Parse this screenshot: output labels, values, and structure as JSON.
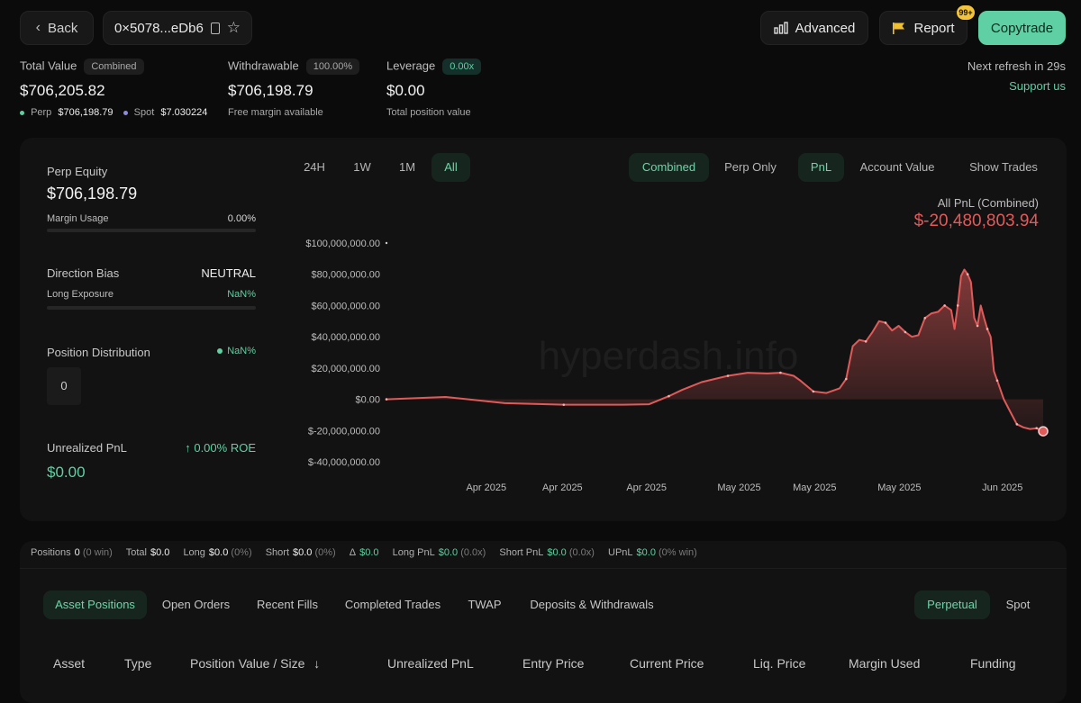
{
  "header": {
    "back_label": "Back",
    "address": "0×5078...eDb6",
    "advanced_label": "Advanced",
    "report_label": "Report",
    "report_badge": "99+",
    "copytrade_label": "Copytrade",
    "refresh_text": "Next refresh in 29s",
    "support_text": "Support us"
  },
  "summary": {
    "total_value_label": "Total Value",
    "total_value_pill": "Combined",
    "total_value": "$706,205.82",
    "perp_label": "Perp",
    "perp_value": "$706,198.79",
    "spot_label": "Spot",
    "spot_value": "$7.030224",
    "withdrawable_label": "Withdrawable",
    "withdrawable_pill": "100.00%",
    "withdrawable_value": "$706,198.79",
    "withdrawable_sub": "Free margin available",
    "leverage_label": "Leverage",
    "leverage_pill": "0.00x",
    "leverage_value": "$0.00",
    "leverage_sub": "Total position value"
  },
  "left_panel": {
    "perp_equity_label": "Perp Equity",
    "perp_equity_value": "$706,198.79",
    "margin_usage_label": "Margin Usage",
    "margin_usage_value": "0.00%",
    "margin_usage_fraction": 0,
    "direction_bias_label": "Direction Bias",
    "direction_bias_value": "NEUTRAL",
    "long_exposure_label": "Long Exposure",
    "long_exposure_value": "NaN%",
    "position_dist_label": "Position Distribution",
    "position_dist_value": "NaN%",
    "position_count": "0",
    "upnl_label": "Unrealized PnL",
    "roe_value": "0.00% ROE",
    "upnl_value": "$0.00"
  },
  "range_tabs": [
    "24H",
    "1W",
    "1M",
    "All"
  ],
  "mode_tabs": [
    "Combined",
    "Perp Only"
  ],
  "metric_tabs": [
    "PnL",
    "Account Value"
  ],
  "show_trades_label": "Show Trades",
  "chart_header": {
    "label": "All PnL (Combined)",
    "value": "$-20,480,803.94"
  },
  "watermark": "hyperdash.info",
  "chart_data": {
    "type": "area",
    "ylim": [
      -40000000,
      100000000
    ],
    "y_ticks": [
      100000000,
      80000000,
      60000000,
      40000000,
      20000000,
      0,
      -20000000,
      -40000000
    ],
    "y_tick_labels": [
      "$100,000,000.00",
      "$80,000,000.00",
      "$60,000,000.00",
      "$40,000,000.00",
      "$20,000,000.00",
      "$0.00",
      "$-20,000,000.00",
      "$-40,000,000.00"
    ],
    "x_tick_labels": [
      "Apr 2025",
      "Apr 2025",
      "Apr 2025",
      "May 2025",
      "May 2025",
      "May 2025",
      "Jun 2025"
    ],
    "x_tick_positions": [
      0.152,
      0.268,
      0.396,
      0.537,
      0.652,
      0.781,
      0.938
    ],
    "x_range": [
      0,
      1
    ],
    "series": [
      {
        "color": "#e05a5a",
        "points": [
          [
            0,
            0
          ],
          [
            0.09,
            1500000
          ],
          [
            0.18,
            -2500000
          ],
          [
            0.27,
            -3500000
          ],
          [
            0.36,
            -3500000
          ],
          [
            0.4,
            -3200000
          ],
          [
            0.43,
            2000000
          ],
          [
            0.45,
            6000000
          ],
          [
            0.48,
            11000000
          ],
          [
            0.52,
            15000000
          ],
          [
            0.55,
            17000000
          ],
          [
            0.58,
            16500000
          ],
          [
            0.6,
            17000000
          ],
          [
            0.62,
            15000000
          ],
          [
            0.63,
            12000000
          ],
          [
            0.65,
            5000000
          ],
          [
            0.67,
            4000000
          ],
          [
            0.69,
            7000000
          ],
          [
            0.7,
            13000000
          ],
          [
            0.71,
            34000000
          ],
          [
            0.72,
            38000000
          ],
          [
            0.73,
            37000000
          ],
          [
            0.74,
            43000000
          ],
          [
            0.75,
            50000000
          ],
          [
            0.76,
            49000000
          ],
          [
            0.77,
            44000000
          ],
          [
            0.78,
            47000000
          ],
          [
            0.79,
            43000000
          ],
          [
            0.8,
            40000000
          ],
          [
            0.81,
            41000000
          ],
          [
            0.82,
            52000000
          ],
          [
            0.83,
            55000000
          ],
          [
            0.84,
            56000000
          ],
          [
            0.85,
            60000000
          ],
          [
            0.86,
            57000000
          ],
          [
            0.865,
            45000000
          ],
          [
            0.87,
            60000000
          ],
          [
            0.875,
            79000000
          ],
          [
            0.88,
            83000000
          ],
          [
            0.885,
            80000000
          ],
          [
            0.89,
            75000000
          ],
          [
            0.895,
            52000000
          ],
          [
            0.9,
            47000000
          ],
          [
            0.905,
            60000000
          ],
          [
            0.91,
            52000000
          ],
          [
            0.915,
            45000000
          ],
          [
            0.92,
            40000000
          ],
          [
            0.925,
            18000000
          ],
          [
            0.93,
            12000000
          ],
          [
            0.94,
            0
          ],
          [
            0.95,
            -8000000
          ],
          [
            0.96,
            -16000000
          ],
          [
            0.97,
            -18000000
          ],
          [
            0.98,
            -19000000
          ],
          [
            0.99,
            -18500000
          ],
          [
            1.0,
            -20480803
          ]
        ]
      }
    ]
  },
  "stats": {
    "positions_label": "Positions",
    "positions_value": "0",
    "positions_sub": "(0 win)",
    "total_label": "Total",
    "total_value": "$0.0",
    "long_label": "Long",
    "long_value": "$0.0",
    "long_sub": "(0%)",
    "short_label": "Short",
    "short_value": "$0.0",
    "short_sub": "(0%)",
    "delta_label": "Δ",
    "delta_value": "$0.0",
    "long_pnl_label": "Long PnL",
    "long_pnl_value": "$0.0",
    "long_pnl_sub": "(0.0x)",
    "short_pnl_label": "Short PnL",
    "short_pnl_value": "$0.0",
    "short_pnl_sub": "(0.0x)",
    "upnl_label": "UPnL",
    "upnl_value": "$0.0",
    "upnl_sub": "(0% win)"
  },
  "bottom_tabs": [
    "Asset Positions",
    "Open Orders",
    "Recent Fills",
    "Completed Trades",
    "TWAP",
    "Deposits & Withdrawals"
  ],
  "market_tabs": [
    "Perpetual",
    "Spot"
  ],
  "table_headers": [
    "Asset",
    "Type",
    "Position Value / Size",
    "Unrealized PnL",
    "Entry Price",
    "Current Price",
    "Liq. Price",
    "Margin Used",
    "Funding"
  ]
}
